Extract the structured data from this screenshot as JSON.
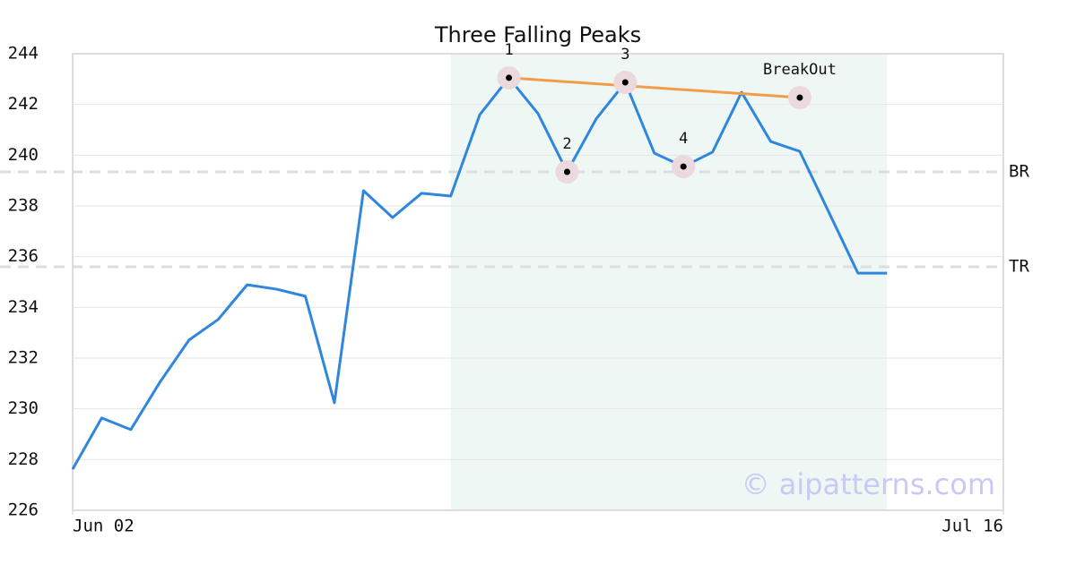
{
  "chart_data": {
    "type": "line",
    "title": "Three Falling Peaks",
    "x": [
      0,
      1,
      2,
      3,
      4,
      5,
      6,
      7,
      8,
      9,
      10,
      11,
      12,
      13,
      14,
      15,
      16,
      17,
      18,
      19,
      20,
      21,
      22,
      23,
      24,
      25,
      26,
      27,
      28
    ],
    "series": [
      {
        "color": "#2e86de",
        "values": [
          227.62,
          229.64,
          229.18,
          231.05,
          232.71,
          233.52,
          234.89,
          234.72,
          234.44,
          230.24,
          238.6,
          237.54,
          238.5,
          238.39,
          241.6,
          243.05,
          241.64,
          239.34,
          241.43,
          242.87,
          240.08,
          239.55,
          240.12,
          242.48,
          240.54,
          240.15,
          237.75,
          235.35,
          235.35
        ]
      }
    ],
    "xlim": [
      0,
      32
    ],
    "xticks": [
      {
        "value": 0,
        "label": "Jun 02"
      },
      {
        "value": 32,
        "label": "Jul 16"
      }
    ],
    "ylim": [
      226,
      244
    ],
    "yticks": [
      226,
      228,
      230,
      232,
      234,
      236,
      238,
      240,
      242,
      244
    ],
    "grid": true,
    "shade": {
      "x": [
        13,
        28
      ],
      "color": "#eef7f3"
    },
    "levels": [
      {
        "label": "BR",
        "value": 239.34
      },
      {
        "label": "TR",
        "value": 235.6
      }
    ],
    "trendline": {
      "color": "#f39c4a",
      "x": [
        15,
        25
      ],
      "y": [
        243.05,
        242.27
      ]
    },
    "annotations": [
      {
        "label": "1",
        "x": 15,
        "y": 243.05
      },
      {
        "label": "2",
        "x": 17,
        "y": 239.34
      },
      {
        "label": "3",
        "x": 19,
        "y": 242.87
      },
      {
        "label": "4",
        "x": 21,
        "y": 239.55
      },
      {
        "label": "BreakOut",
        "x": 25,
        "y": 242.27
      }
    ],
    "watermark": "© aipatterns.com"
  }
}
